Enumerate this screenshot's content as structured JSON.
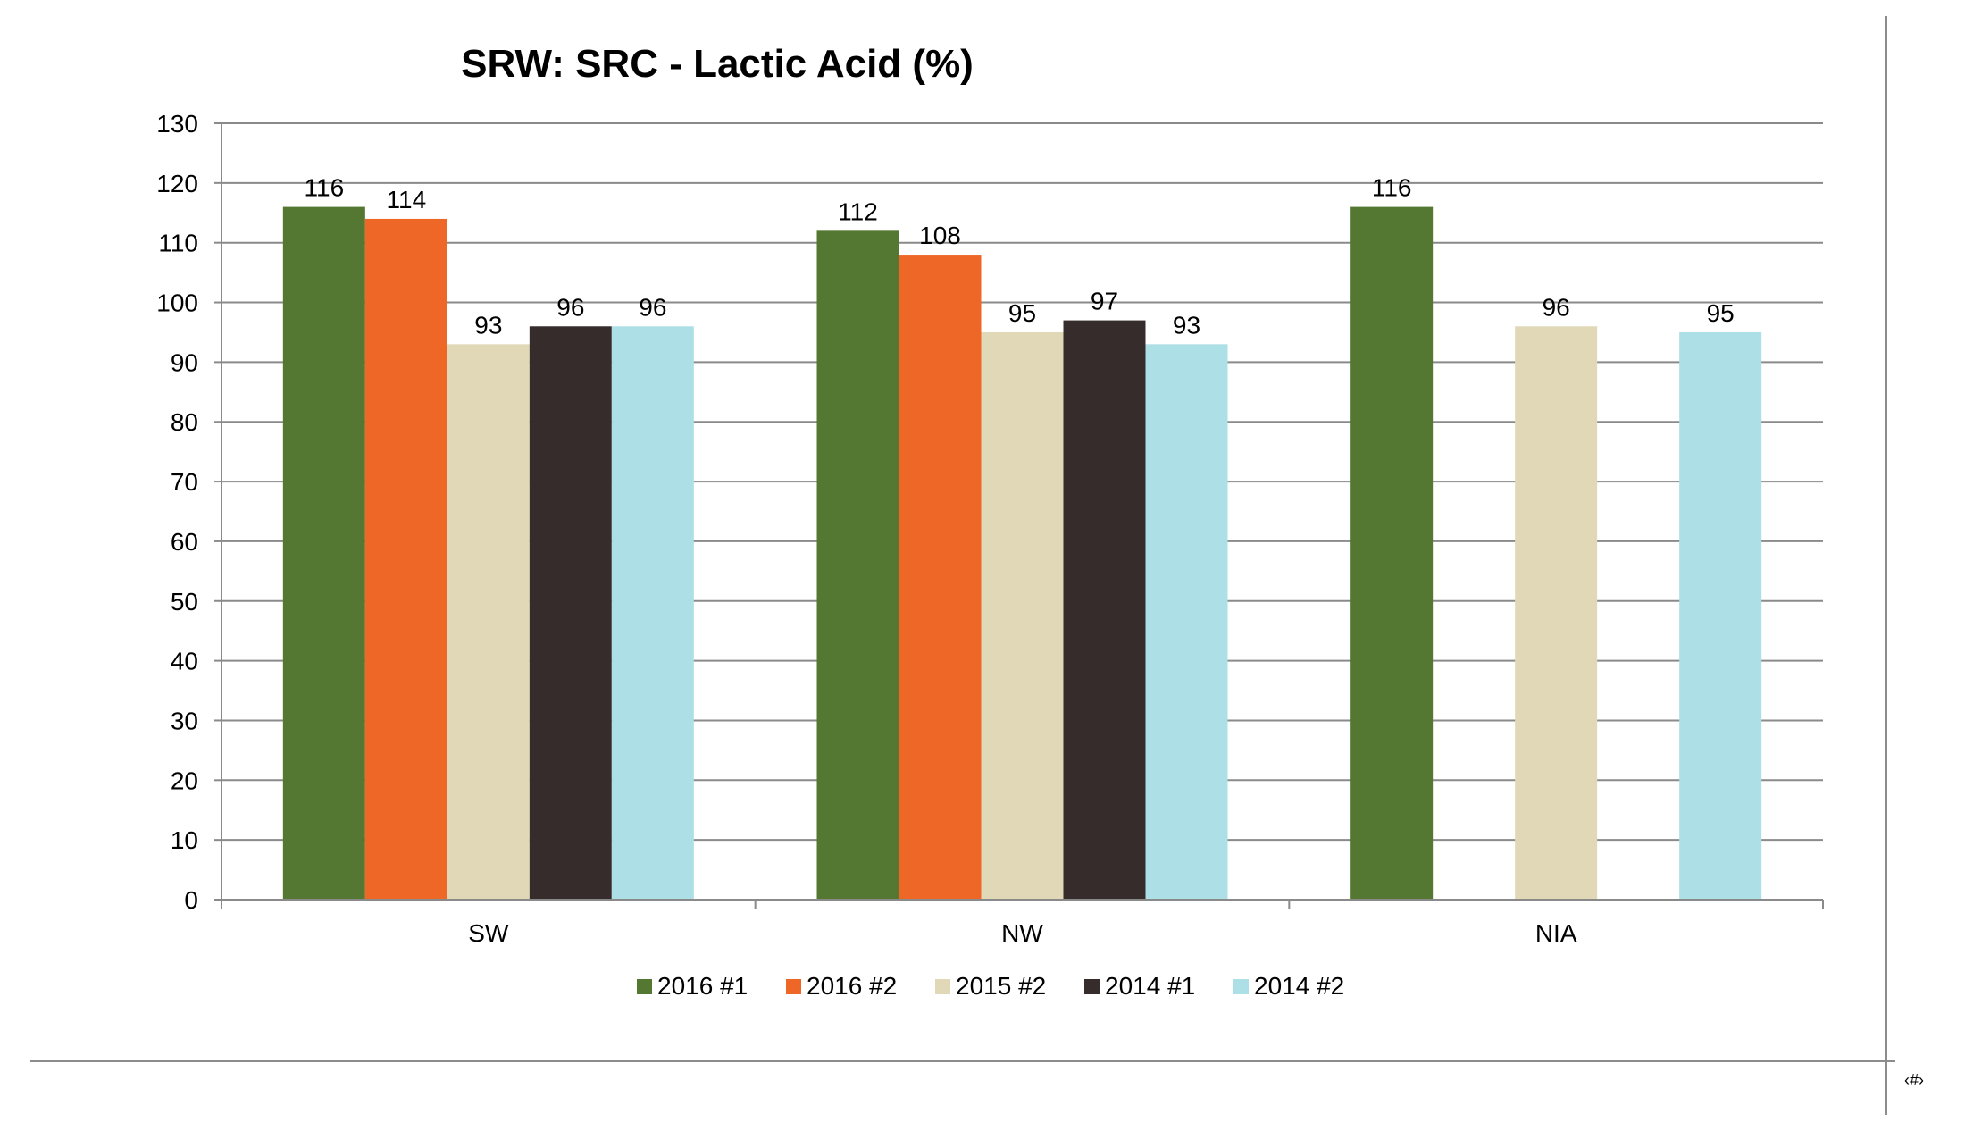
{
  "slide": {
    "page_number": "‹#›"
  },
  "chart_data": {
    "type": "bar",
    "title": "SRW:  SRC - Lactic Acid (%)",
    "xlabel": "",
    "ylabel": "",
    "categories": [
      "SW",
      "NW",
      "NIA"
    ],
    "ylim": [
      0,
      130
    ],
    "yticks": [
      0,
      10,
      20,
      30,
      40,
      50,
      60,
      70,
      80,
      90,
      100,
      110,
      120,
      130
    ],
    "grid": true,
    "legend_position": "bottom",
    "series": [
      {
        "name": "2016 #1",
        "color": "#547832",
        "values": [
          116,
          112,
          116
        ],
        "labels": [
          "116",
          "112",
          "116"
        ]
      },
      {
        "name": "2016 #2",
        "color": "#ef6726",
        "values": [
          114,
          108,
          null
        ],
        "labels": [
          "114",
          "108",
          ""
        ]
      },
      {
        "name": "2015 #2",
        "color": "#e1d8b8",
        "values": [
          93,
          95,
          96
        ],
        "labels": [
          "93",
          "95",
          "96"
        ]
      },
      {
        "name": "2014 #1",
        "color": "#362c2c",
        "values": [
          96,
          97,
          null
        ],
        "labels": [
          "96",
          "97",
          ""
        ]
      },
      {
        "name": "2014 #2",
        "color": "#acdfe6",
        "values": [
          96,
          93,
          95
        ],
        "labels": [
          "96",
          "93",
          "95"
        ]
      }
    ]
  }
}
